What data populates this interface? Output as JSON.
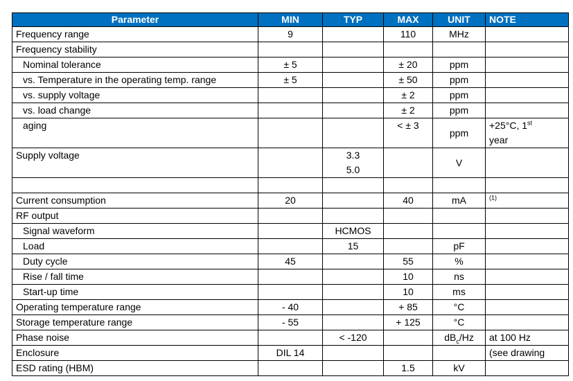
{
  "table": {
    "header": [
      "Parameter",
      "MIN",
      "TYP",
      "MAX",
      "UNIT",
      "NOTE"
    ],
    "rows": [
      {
        "cells": [
          "Frequency range",
          "9",
          null,
          "110",
          "MHz",
          null
        ]
      },
      {
        "cells": [
          "Frequency stability",
          null,
          null,
          null,
          null,
          null
        ]
      },
      {
        "indent": true,
        "cells": [
          "Nominal tolerance",
          "± 5",
          null,
          "± 20",
          "ppm",
          null
        ]
      },
      {
        "indent": true,
        "cells": [
          "vs. Temperature in the operating temp. range",
          "± 5",
          null,
          "± 50",
          "ppm",
          null
        ]
      },
      {
        "indent": true,
        "cells": [
          "vs. supply voltage",
          null,
          null,
          "± 2",
          "ppm",
          null
        ]
      },
      {
        "indent": true,
        "cells": [
          "vs. load change",
          null,
          null,
          "± 2",
          "ppm",
          null
        ]
      },
      {
        "indent": true,
        "cells": [
          "aging",
          null,
          null,
          "< ± 3",
          "ppm",
          {
            "lines": [
              [
                "+25°C, 1",
                {
                  "sup": "st"
                }
              ],
              [
                "year"
              ]
            ]
          }
        ]
      },
      {
        "cells": [
          "Supply voltage",
          null,
          {
            "lines": [
              [
                "3.3"
              ],
              [
                "5.0"
              ]
            ]
          },
          null,
          "V",
          null
        ]
      },
      {
        "cells": [
          null,
          null,
          null,
          null,
          null,
          null
        ]
      },
      {
        "cells": [
          "Current consumption",
          "20",
          null,
          "40",
          "mA",
          {
            "lines": [
              [
                {
                  "sup": "(1)"
                }
              ]
            ]
          }
        ]
      },
      {
        "cells": [
          "RF output",
          null,
          null,
          null,
          null,
          null
        ]
      },
      {
        "indent": true,
        "cells": [
          "Signal waveform",
          null,
          "HCMOS",
          null,
          null,
          null
        ]
      },
      {
        "indent": true,
        "cells": [
          "Load",
          null,
          "15",
          null,
          "pF",
          null
        ]
      },
      {
        "indent": true,
        "cells": [
          "Duty cycle",
          "45",
          null,
          "55",
          "%",
          null
        ]
      },
      {
        "indent": true,
        "cells": [
          "Rise / fall time",
          null,
          null,
          "10",
          "ns",
          null
        ]
      },
      {
        "indent": true,
        "cells": [
          "Start-up time",
          null,
          null,
          "10",
          "ms",
          null
        ]
      },
      {
        "cells": [
          "Operating temperature range",
          "- 40",
          null,
          "+ 85",
          "°C",
          null
        ]
      },
      {
        "cells": [
          "Storage temperature range",
          "- 55",
          null,
          "+ 125",
          "°C",
          null
        ]
      },
      {
        "cells": [
          "Phase noise",
          null,
          "< -120",
          null,
          {
            "lines": [
              [
                "dB",
                {
                  "sub": "c"
                },
                "/Hz"
              ]
            ]
          },
          "at 100 Hz"
        ]
      },
      {
        "cells": [
          "Enclosure",
          "DIL 14",
          null,
          null,
          null,
          "(see drawing"
        ]
      },
      {
        "cells": [
          "ESD rating (HBM)",
          null,
          null,
          "1.5",
          "kV",
          null
        ]
      }
    ]
  }
}
